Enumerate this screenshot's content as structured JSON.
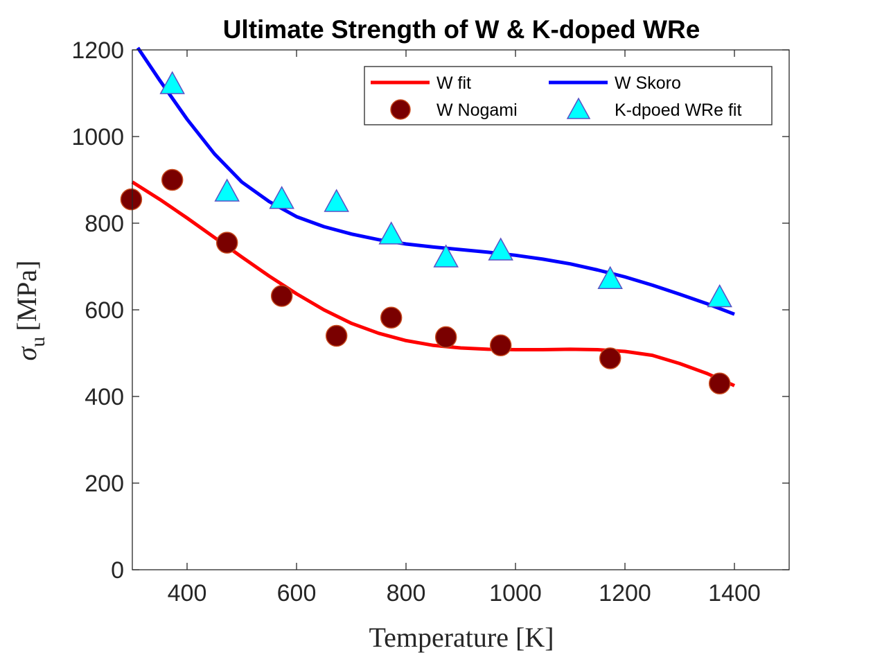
{
  "chart_data": {
    "type": "line",
    "title": "Ultimate Strength of W & K-doped WRe",
    "xlabel": "Temperature [K]",
    "ylabel_symbol": "σ",
    "ylabel_subscript": "u",
    "ylabel_unit": "[MPa]",
    "xlim": [
      300,
      1500
    ],
    "ylim": [
      0,
      1200
    ],
    "xticks": [
      400,
      600,
      800,
      1000,
      1200,
      1400
    ],
    "yticks": [
      0,
      200,
      400,
      600,
      800,
      1000,
      1200
    ],
    "grid": false,
    "legend_position": "top-right",
    "series": [
      {
        "name": "W fit",
        "kind": "line",
        "color": "#ff0000",
        "x": [
          300,
          350,
          400,
          450,
          500,
          550,
          600,
          650,
          700,
          750,
          800,
          850,
          900,
          950,
          1000,
          1050,
          1100,
          1150,
          1200,
          1250,
          1300,
          1350,
          1400
        ],
        "y": [
          895,
          855,
          812,
          767,
          722,
          678,
          637,
          600,
          569,
          546,
          529,
          518,
          512,
          509,
          508,
          508,
          509,
          508,
          504,
          495,
          476,
          453,
          425
        ]
      },
      {
        "name": "W Skoro",
        "kind": "line",
        "color": "#0000ff",
        "x": [
          310,
          350,
          400,
          450,
          500,
          550,
          600,
          650,
          700,
          750,
          800,
          850,
          900,
          950,
          1000,
          1050,
          1100,
          1150,
          1200,
          1250,
          1300,
          1350,
          1400
        ],
        "y": [
          1205,
          1130,
          1040,
          960,
          895,
          850,
          815,
          792,
          775,
          762,
          752,
          745,
          739,
          733,
          726,
          717,
          706,
          692,
          676,
          657,
          636,
          614,
          590
        ]
      },
      {
        "name": "W Nogami",
        "kind": "scatter",
        "marker": "circle",
        "color": "#7a0000",
        "edge_color": "#c84a1e",
        "x": [
          298,
          373,
          473,
          573,
          673,
          773,
          873,
          973,
          1173,
          1373
        ],
        "y": [
          855,
          900,
          755,
          632,
          540,
          582,
          537,
          518,
          488,
          430
        ]
      },
      {
        "name": "K-dpoed WRe fit",
        "kind": "scatter",
        "marker": "triangle",
        "color": "#00ffff",
        "edge_color": "#5a4fc4",
        "x": [
          373,
          473,
          573,
          673,
          773,
          873,
          973,
          1173,
          1373
        ],
        "y": [
          1120,
          872,
          855,
          848,
          773,
          720,
          736,
          670,
          628
        ]
      }
    ]
  }
}
